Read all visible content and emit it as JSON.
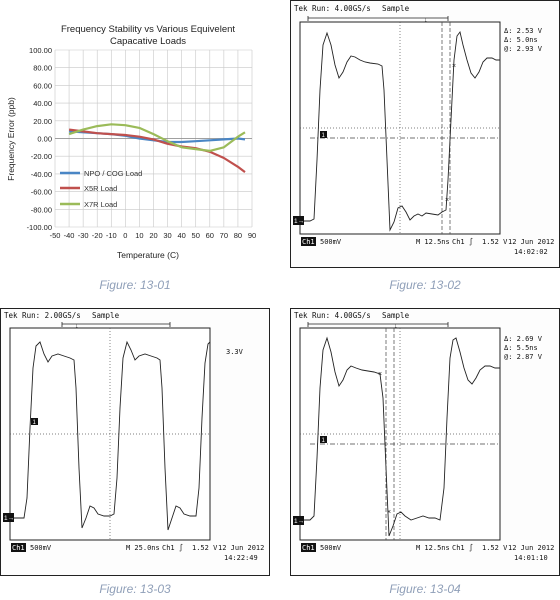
{
  "chart_data": [
    {
      "type": "line",
      "title": "Frequency Stability vs Various Equivelent Capacative Loads",
      "title_lines": [
        "Frequency Stability vs Various Equivelent",
        "Capacative Loads"
      ],
      "xlabel": "Temperature (C)",
      "ylabel": "Frequency Error (ppb)",
      "xlim": [
        -50,
        90
      ],
      "ylim": [
        -100,
        100
      ],
      "x_ticks": [
        -50,
        -40,
        -30,
        -20,
        -10,
        0,
        10,
        20,
        30,
        40,
        50,
        60,
        70,
        80,
        90
      ],
      "x_tick_labels": [
        "-50",
        "-40",
        "-30",
        "-20",
        "-10",
        "0",
        "10",
        "20",
        "30",
        "40",
        "50",
        "60",
        "70",
        "80",
        "90"
      ],
      "y_ticks": [
        100,
        80,
        60,
        40,
        20,
        0,
        -20,
        -40,
        -60,
        -80,
        -100
      ],
      "y_tick_labels": [
        "100.00",
        "80.00",
        "60.00",
        "40.00",
        "20.00",
        "0.00",
        "-20.00",
        "-40.00",
        "-60.00",
        "-80.00",
        "-100.00"
      ],
      "grid": true,
      "legend_position": "bottom-left",
      "series": [
        {
          "name": "NPO / COG Load",
          "color": "#4a86c5",
          "x": [
            -40,
            -30,
            -20,
            -10,
            0,
            10,
            20,
            30,
            40,
            50,
            60,
            70,
            80,
            85
          ],
          "y": [
            8,
            7,
            6,
            5,
            3,
            0,
            -2,
            -4,
            -4,
            -3,
            -2,
            -1,
            0,
            -1
          ]
        },
        {
          "name": "X5R Load",
          "color": "#c0504d",
          "x": [
            -40,
            -30,
            -20,
            -10,
            0,
            10,
            20,
            30,
            40,
            50,
            60,
            70,
            80,
            85
          ],
          "y": [
            10,
            8,
            6,
            5,
            4,
            2,
            -1,
            -6,
            -9,
            -11,
            -15,
            -22,
            -32,
            -38
          ]
        },
        {
          "name": "X7R Load",
          "color": "#9bbb59",
          "x": [
            -40,
            -30,
            -20,
            -10,
            0,
            10,
            20,
            30,
            40,
            50,
            60,
            70,
            80,
            85
          ],
          "y": [
            5,
            10,
            14,
            16,
            15,
            12,
            5,
            -3,
            -10,
            -12,
            -14,
            -10,
            2,
            7
          ]
        }
      ]
    },
    {
      "type": "line",
      "header": {
        "status": "Tek Run: 4.00GS/s",
        "mode": "Sample"
      },
      "measurements": [
        "Δ: 2.53 V",
        "Δ: 5.0ns",
        "@: 2.93 V"
      ],
      "footer": {
        "channel": "Ch1",
        "scale": "500mV",
        "timebase": "M 12.5ns",
        "trigger": "Ch1 ∫",
        "trigger_level": "1.52 V",
        "date": "12 Jun 2012",
        "time": "14:02:02"
      },
      "markers": {
        "ch1": "1→",
        "trigger": "1"
      }
    },
    {
      "type": "line",
      "header": {
        "status": "Tek Run: 2.00GS/s",
        "mode": "Sample"
      },
      "measurements": [
        "3.3V"
      ],
      "footer": {
        "channel": "Ch1",
        "scale": "500mV",
        "timebase": "M 25.0ns",
        "trigger": "Ch1 ∫",
        "trigger_level": "1.52 V",
        "date": "12 Jun 2012",
        "time": "14:22:49"
      },
      "markers": {
        "ch1": "1→",
        "trigger": "1"
      }
    },
    {
      "type": "line",
      "header": {
        "status": "Tek Run: 4.00GS/s",
        "mode": "Sample"
      },
      "measurements": [
        "Δ: 2.69 V",
        "Δ: 5.5ns",
        "@: 2.87 V"
      ],
      "footer": {
        "channel": "Ch1",
        "scale": "500mV",
        "timebase": "M 12.5ns",
        "trigger": "Ch1 ∫",
        "trigger_level": "1.52 V",
        "date": "12 Jun 2012",
        "time": "14:01:10"
      },
      "markers": {
        "ch1": "1→",
        "trigger": "1"
      }
    }
  ],
  "captions": [
    "Figure: 13-01",
    "Figure: 13-02",
    "Figure: 13-03",
    "Figure: 13-04"
  ],
  "colors": {
    "caption": "#8f9fb8",
    "frame": "#222222",
    "grid": "#bfbfbf"
  }
}
